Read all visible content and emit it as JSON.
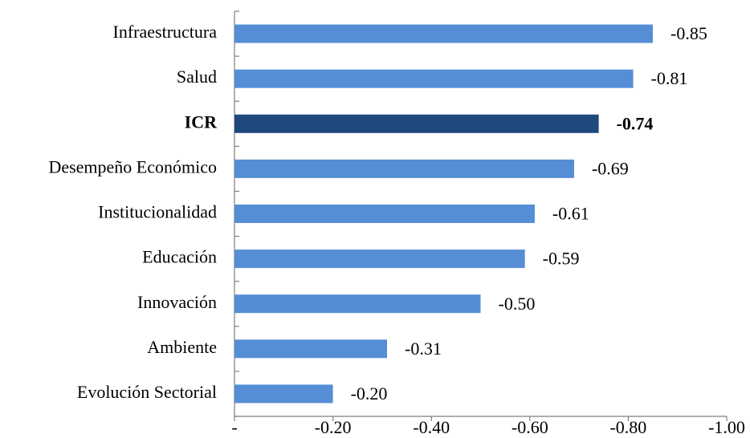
{
  "chart_data": {
    "type": "bar",
    "orientation": "horizontal",
    "categories": [
      "Infraestructura",
      "Salud",
      "ICR",
      "Desempeño Económico",
      "Institucionalidad",
      "Educación",
      "Innovación",
      "Ambiente",
      "Evolución Sectorial"
    ],
    "values": [
      -0.85,
      -0.81,
      -0.74,
      -0.69,
      -0.61,
      -0.59,
      -0.5,
      -0.31,
      -0.2
    ],
    "value_labels": [
      "-0.85",
      "-0.81",
      "-0.74",
      "-0.69",
      "-0.61",
      "-0.59",
      "-0.50",
      "-0.31",
      "-0.20"
    ],
    "highlight_index": 2,
    "colors": {
      "bar": "#558ED5",
      "highlight": "#1F497D",
      "axis": "#7F7F7F"
    },
    "xlim": [
      0,
      -1.0
    ],
    "x_ticks": [
      0,
      -0.2,
      -0.4,
      -0.6,
      -0.8,
      -1.0
    ],
    "x_tick_labels": [
      "-",
      "-0.20",
      "-0.40",
      "-0.60",
      "-0.80",
      "-1.00"
    ],
    "title": "",
    "xlabel": "",
    "ylabel": "",
    "grid": false,
    "legend": "none"
  }
}
